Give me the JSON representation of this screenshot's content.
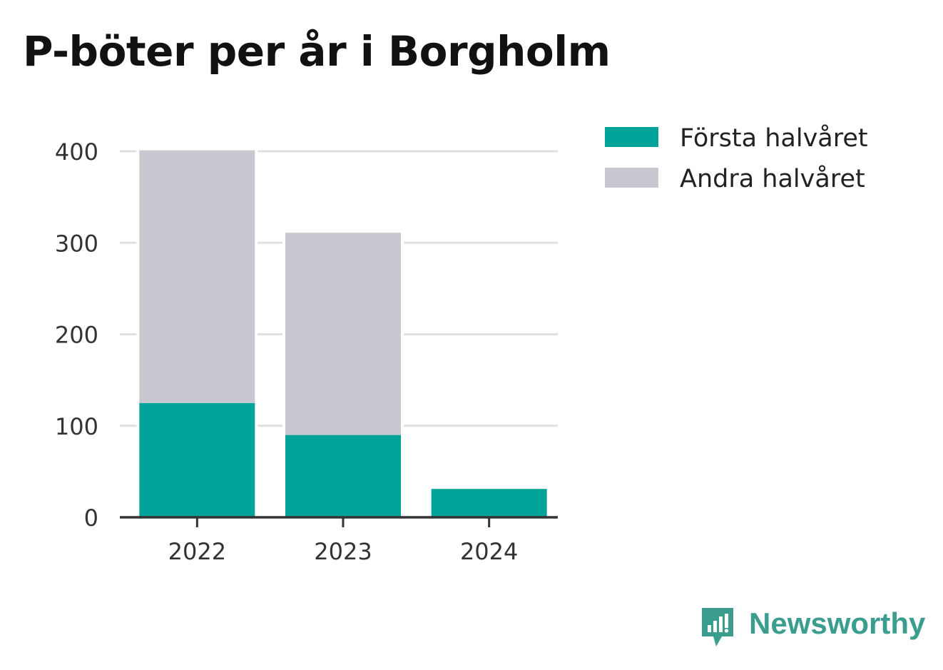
{
  "chart_data": {
    "type": "bar",
    "stacked": true,
    "title": "P-böter per år i Borgholm",
    "categories": [
      "2022",
      "2023",
      "2024"
    ],
    "series": [
      {
        "name": "Första halvåret",
        "color": "#00a39a",
        "values": [
          125,
          90,
          31
        ]
      },
      {
        "name": "Andra halvåret",
        "color": "#c8c8d0",
        "values": [
          276,
          221,
          0
        ]
      }
    ],
    "yticks": [
      "0",
      "100",
      "200",
      "300",
      "400"
    ],
    "ylim": [
      0,
      400
    ],
    "grid": true,
    "legend_position": "right"
  },
  "brand": {
    "name": "Newsworthy",
    "color": "#3a9d8e"
  }
}
